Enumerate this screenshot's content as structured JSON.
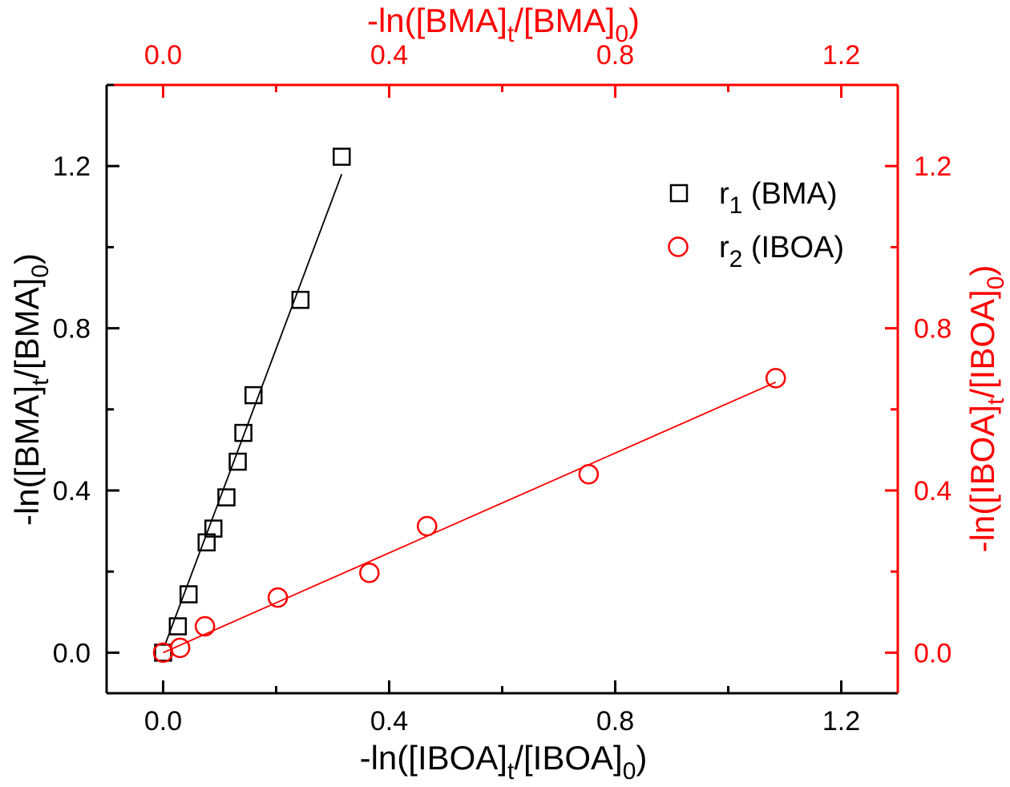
{
  "chart_data": {
    "type": "scatter",
    "colors": {
      "black": "#000000",
      "red": "#ff0000"
    },
    "axes": {
      "bottom": {
        "title_parts": [
          "-ln([IBOA]",
          "t",
          "/[IBOA]",
          "0",
          ")"
        ],
        "range": [
          -0.1,
          1.3
        ],
        "ticks": [
          "0.0",
          "0.4",
          "0.8",
          "1.2"
        ],
        "tick_values": [
          0,
          0.4,
          0.8,
          1.2
        ],
        "minor_step": 0.2,
        "color": "#000000"
      },
      "left": {
        "title_parts": [
          "-ln([BMA]",
          "t",
          "/[BMA]",
          "0",
          ")"
        ],
        "range": [
          -0.1,
          1.4
        ],
        "ticks": [
          "0.0",
          "0.4",
          "0.8",
          "1.2"
        ],
        "tick_values": [
          0,
          0.4,
          0.8,
          1.2
        ],
        "minor_step": 0.2,
        "color": "#000000"
      },
      "top": {
        "title_parts": [
          "-ln([BMA]",
          "t",
          "/[BMA]",
          "0",
          ")"
        ],
        "range": [
          -0.1,
          1.3
        ],
        "ticks": [
          "0.0",
          "0.4",
          "0.8",
          "1.2"
        ],
        "tick_values": [
          0,
          0.4,
          0.8,
          1.2
        ],
        "minor_step": 0.2,
        "color": "#ff0000"
      },
      "right": {
        "title_parts": [
          "-ln([IBOA]",
          "t",
          "/[IBOA]",
          "0",
          ")"
        ],
        "range": [
          -0.1,
          1.4
        ],
        "ticks": [
          "0.0",
          "0.4",
          "0.8",
          "1.2"
        ],
        "tick_values": [
          0,
          0.4,
          0.8,
          1.2
        ],
        "minor_step": 0.2,
        "color": "#ff0000"
      }
    },
    "series": [
      {
        "name": "r1 (BMA)",
        "label_main": "r",
        "label_sub": "1",
        "label_rest": " (BMA)",
        "marker": "square",
        "color": "#000000",
        "axes": [
          "bottom",
          "left"
        ],
        "x": [
          0,
          0.026,
          0.045,
          0.077,
          0.089,
          0.112,
          0.132,
          0.142,
          0.16,
          0.243,
          0.316
        ],
        "y": [
          0,
          0.065,
          0.144,
          0.272,
          0.306,
          0.383,
          0.471,
          0.542,
          0.635,
          0.87,
          1.223
        ],
        "fit": {
          "x": [
            0.004,
            0.316
          ],
          "y": [
            0.022,
            1.18
          ]
        }
      },
      {
        "name": "r2 (IBOA)",
        "label_main": "r",
        "label_sub": "2",
        "label_rest": " (IBOA)",
        "marker": "circle",
        "color": "#ff0000",
        "axes": [
          "top",
          "right"
        ],
        "x": [
          0,
          0.03,
          0.074,
          0.203,
          0.365,
          0.467,
          0.753,
          1.084
        ],
        "y": [
          0,
          0.012,
          0.065,
          0.136,
          0.197,
          0.312,
          0.44,
          0.677
        ],
        "fit": {
          "x": [
            0,
            1.084
          ],
          "y": [
            0,
            0.667
          ]
        }
      }
    ],
    "legend": {
      "placement": "top-right"
    },
    "grid": false
  }
}
